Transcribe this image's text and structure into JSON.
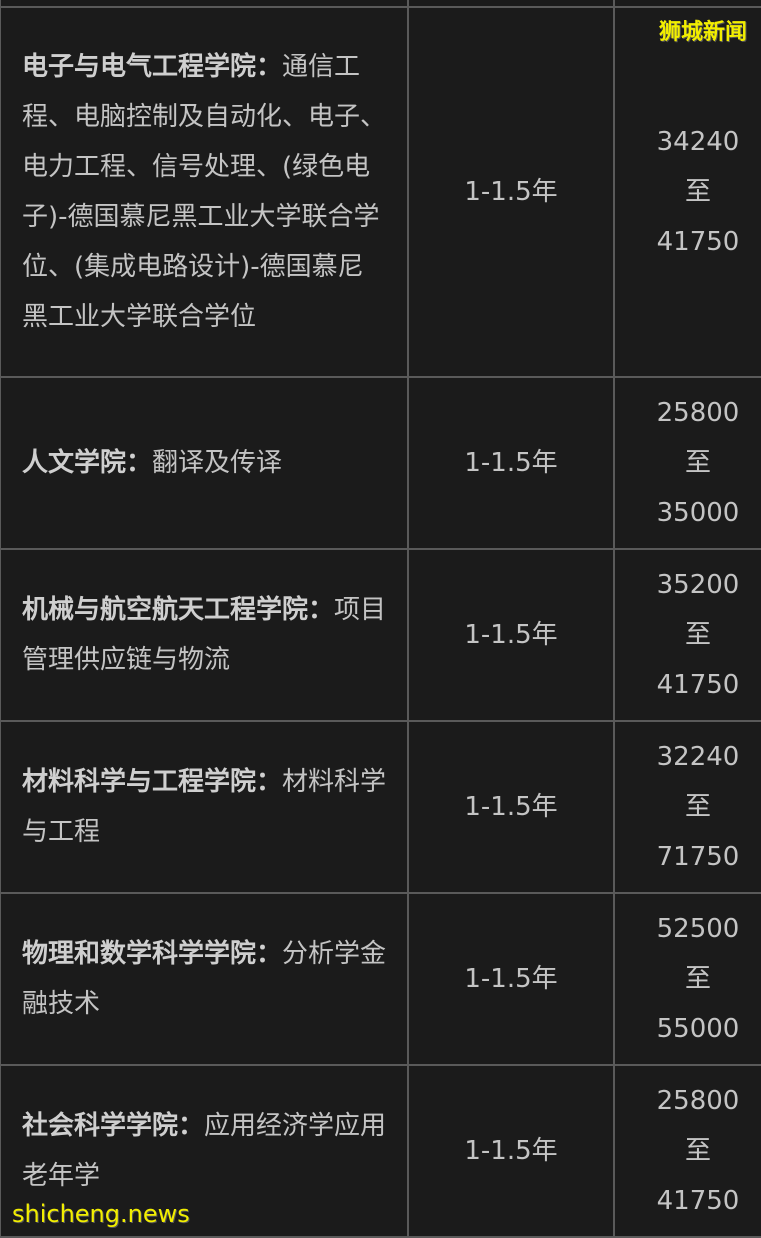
{
  "rows": [
    {
      "school": "电子与电气工程学院：",
      "program": "通信工程、电脑控制及自动化、电子、电力工程、信号处理、(绿色电子)-德国慕尼黑工业大学联合学位、(集成电路设计)-德国慕尼黑工业大学联合学位",
      "duration": "1-1.5年",
      "fee_min": "34240",
      "sep": "至",
      "fee_max": "41750"
    },
    {
      "school": "人文学院：",
      "program": "翻译及传译",
      "duration": "1-1.5年",
      "fee_min": "25800",
      "sep": "至",
      "fee_max": "35000"
    },
    {
      "school": "机械与航空航天工程学院：",
      "program": "项目管理供应链与物流",
      "duration": "1-1.5年",
      "fee_min": "35200",
      "sep": "至",
      "fee_max": "41750"
    },
    {
      "school": "材料科学与工程学院：",
      "program": "材料科学与工程",
      "duration": "1-1.5年",
      "fee_min": "32240",
      "sep": "至",
      "fee_max": "71750"
    },
    {
      "school": "物理和数学科学学院：",
      "program": "分析学金融技术",
      "duration": "1-1.5年",
      "fee_min": "52500",
      "sep": "至",
      "fee_max": "55000"
    },
    {
      "school": "社会科学学院：",
      "program": "应用经济学应用老年学",
      "duration": "1-1.5年",
      "fee_min": "25800",
      "sep": "至",
      "fee_max": "41750"
    }
  ],
  "watermark": {
    "top": "狮城新闻",
    "bottom": "shicheng.news"
  }
}
